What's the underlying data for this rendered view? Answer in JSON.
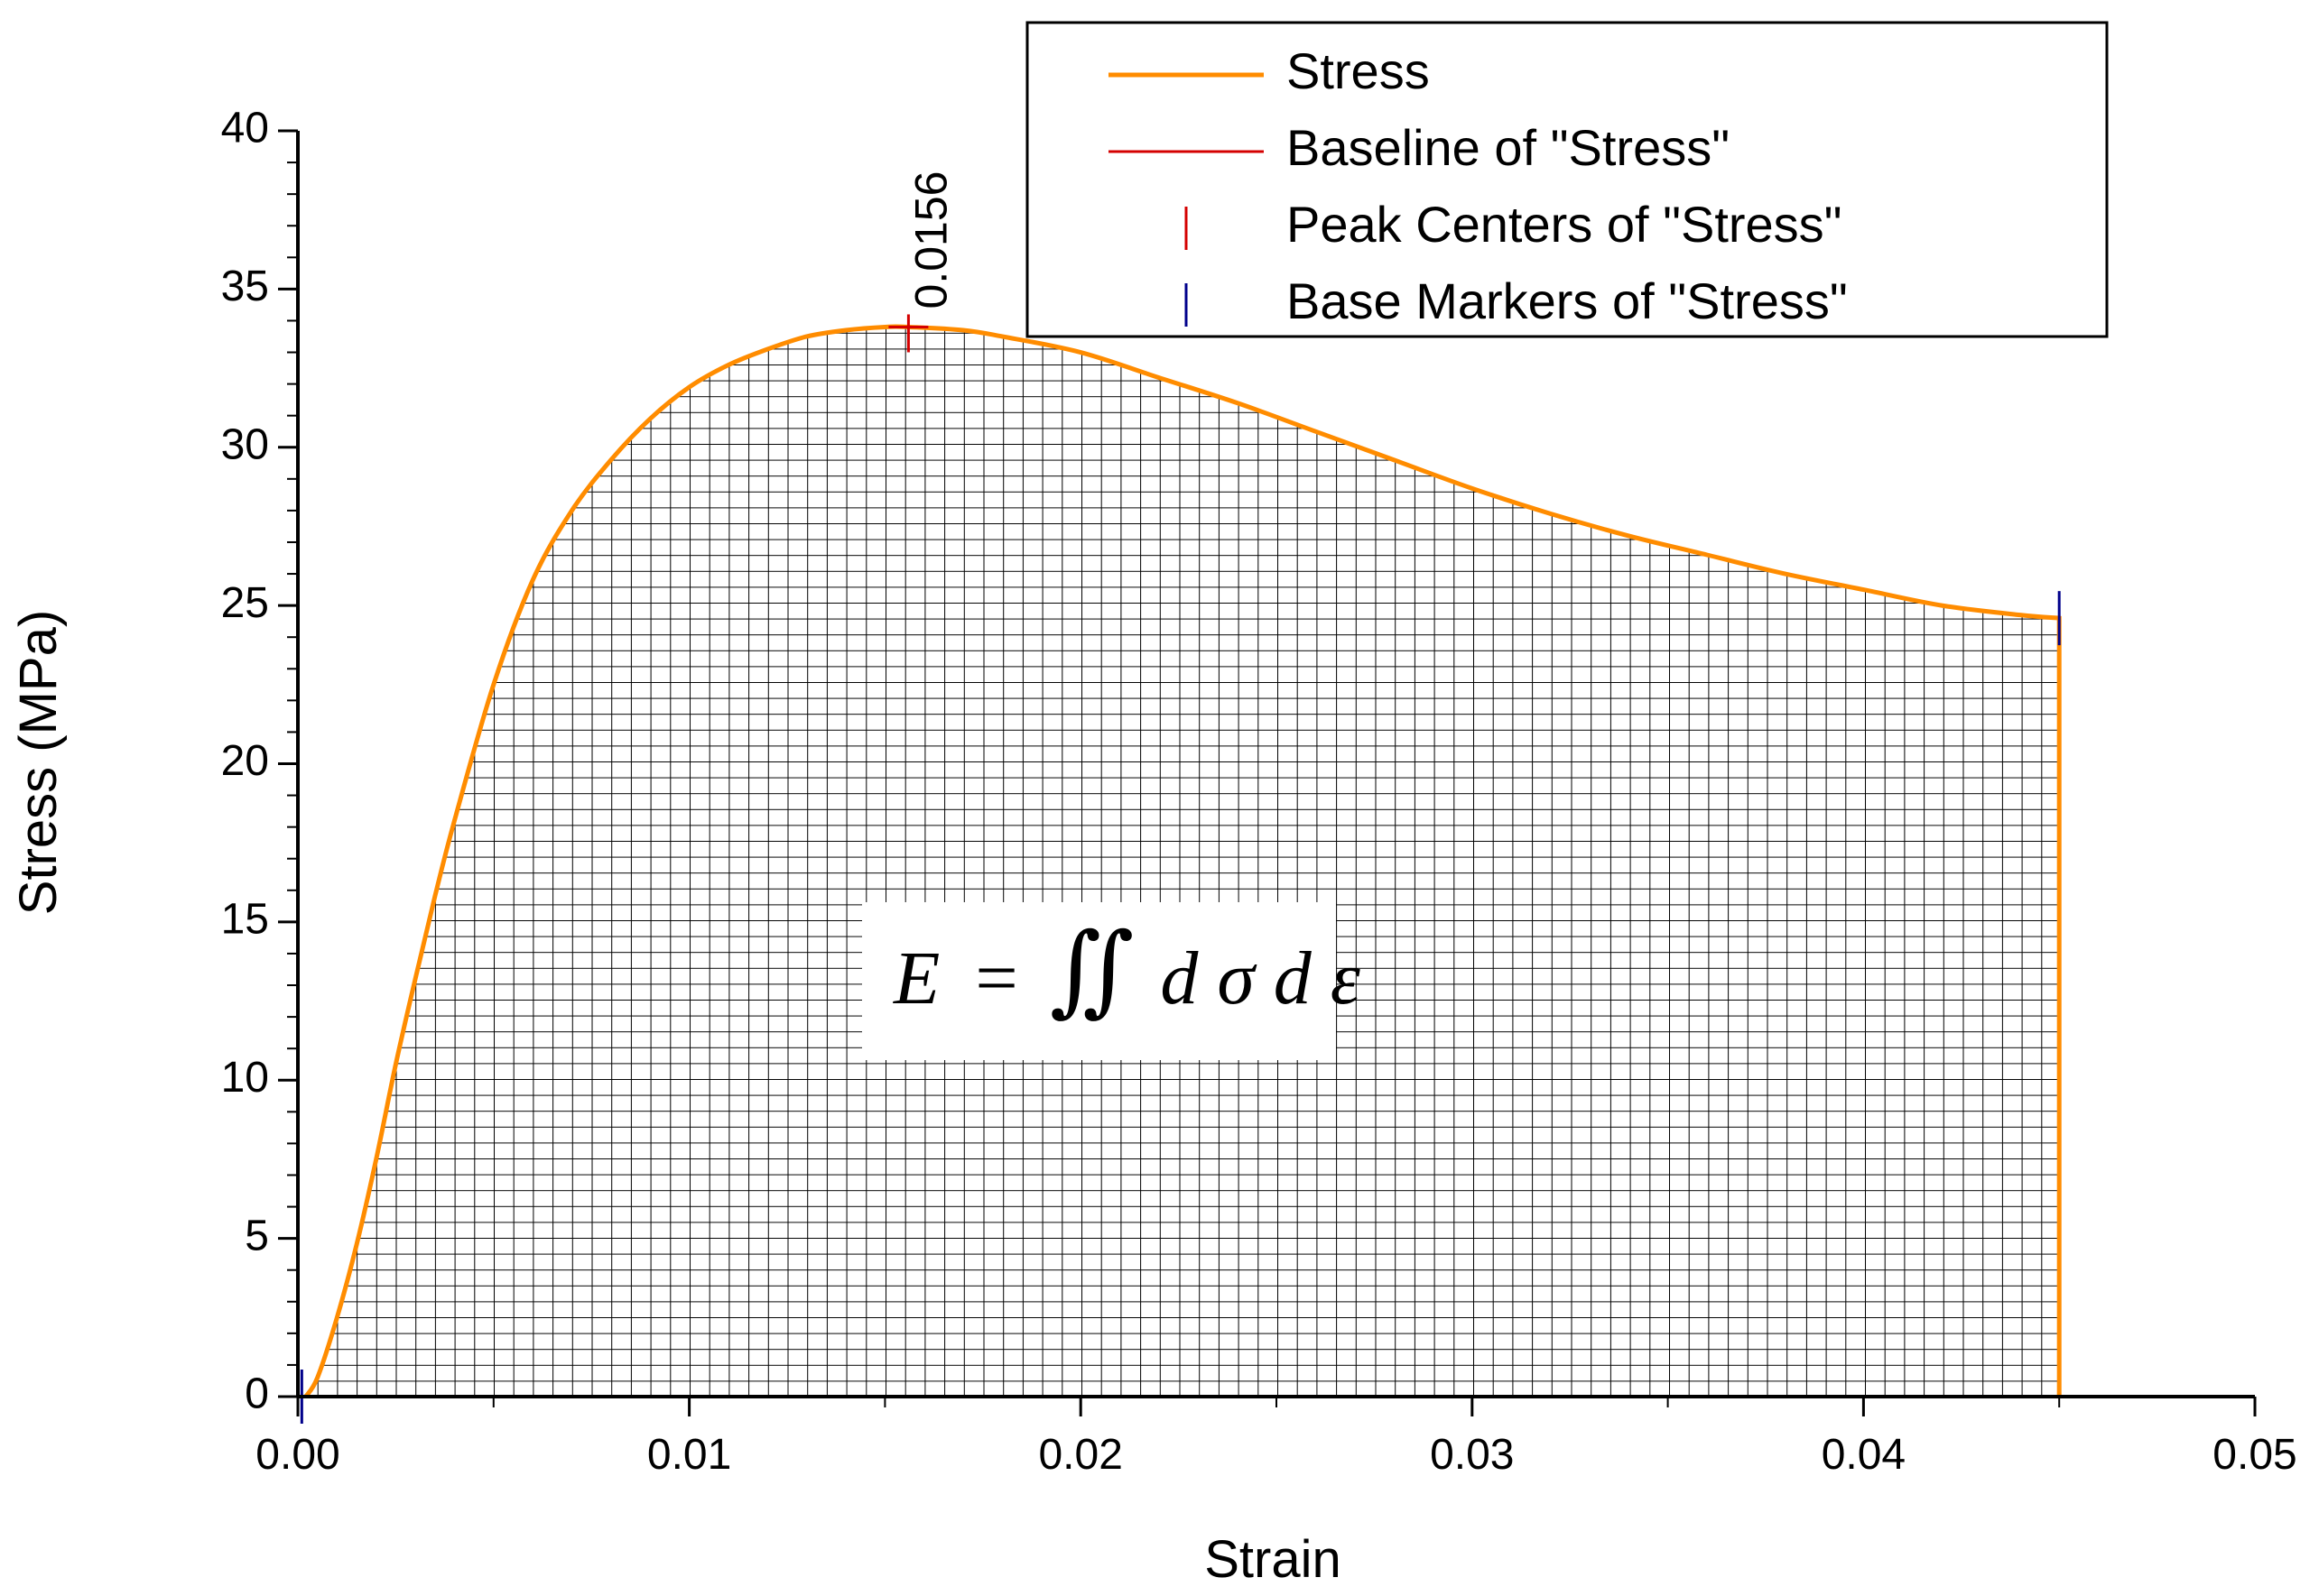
{
  "chart_data": {
    "type": "area",
    "xlabel": "Strain",
    "ylabel": "Stress (MPa)",
    "xlim": [
      0,
      0.05
    ],
    "ylim": [
      0,
      40
    ],
    "x_ticks": [
      "0.00",
      "0.01",
      "0.02",
      "0.03",
      "0.04",
      "0.05"
    ],
    "y_ticks": [
      "0",
      "5",
      "10",
      "15",
      "20",
      "25",
      "30",
      "35",
      "40"
    ],
    "grid": false,
    "fill_pattern": "crosshatch",
    "legend_position": "top-right",
    "colors": {
      "stress": "#ff8c00",
      "baseline": "#d40000",
      "peak_marker": "#d40000",
      "base_marker": "#00008b",
      "hatch": "#000000"
    },
    "series": [
      {
        "name": "Stress",
        "x": [
          0.0002,
          0.0005,
          0.001,
          0.0015,
          0.002,
          0.0025,
          0.003,
          0.0035,
          0.004,
          0.005,
          0.006,
          0.007,
          0.008,
          0.009,
          0.01,
          0.011,
          0.012,
          0.013,
          0.014,
          0.015,
          0.0156,
          0.017,
          0.018,
          0.02,
          0.022,
          0.024,
          0.026,
          0.028,
          0.03,
          0.032,
          0.034,
          0.036,
          0.038,
          0.04,
          0.042,
          0.044,
          0.045
        ],
        "y": [
          0,
          0.6,
          2.5,
          4.8,
          7.5,
          10.5,
          13.2,
          15.8,
          18.2,
          22.5,
          25.8,
          28.0,
          29.6,
          30.9,
          31.9,
          32.6,
          33.1,
          33.5,
          33.7,
          33.8,
          33.8,
          33.7,
          33.5,
          33.0,
          32.2,
          31.4,
          30.5,
          29.6,
          28.7,
          27.9,
          27.2,
          26.6,
          26.0,
          25.5,
          25.0,
          24.7,
          24.6
        ]
      }
    ],
    "baseline": {
      "name": "Baseline of \"Stress\"",
      "y": 0,
      "x_range": [
        0,
        0.045
      ]
    },
    "peak_centers": {
      "name": "Peak Centers of \"Stress\"",
      "x": [
        0.0156
      ],
      "label": "0.0156"
    },
    "base_markers": {
      "name": "Base Markers of \"Stress\"",
      "x": [
        0.0001,
        0.045
      ]
    },
    "legend": [
      {
        "label": "Stress",
        "symbol": "line",
        "color": "#ff8c00"
      },
      {
        "label": "Baseline of \"Stress\"",
        "symbol": "line",
        "color": "#d40000"
      },
      {
        "label": "Peak Centers of \"Stress\"",
        "symbol": "tick",
        "color": "#d40000"
      },
      {
        "label": "Base Markers of \"Stress\"",
        "symbol": "tick",
        "color": "#00008b"
      }
    ],
    "annotation": {
      "E": "E",
      "eq": "=",
      "integral": "∬",
      "d1": "d",
      "sigma": "σ",
      "d2": "d",
      "epsilon": "ε"
    }
  }
}
